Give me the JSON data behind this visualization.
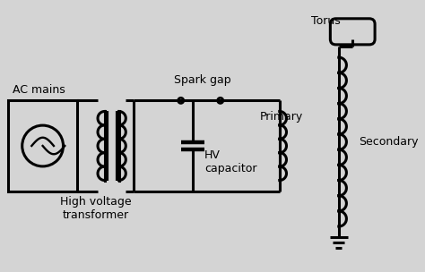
{
  "bg_color": "#d4d4d4",
  "line_color": "#000000",
  "line_width": 2.2,
  "labels": {
    "ac_mains": "AC mains",
    "hv_transformer": "High voltage\ntransformer",
    "spark_gap": "Spark gap",
    "primary": "Primary",
    "hv_capacitor": "HV\ncapacitor",
    "secondary": "Secondary",
    "torus": "Torus"
  },
  "font_size": 9
}
